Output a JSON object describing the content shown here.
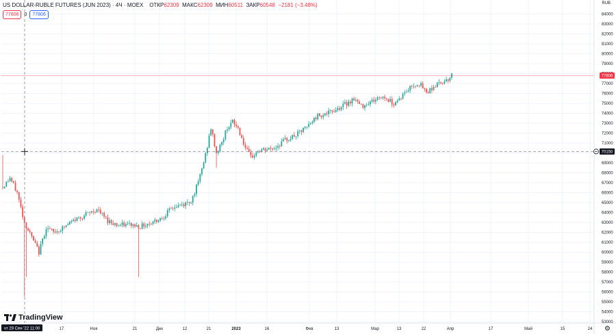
{
  "header": {
    "symbol": "US DOLLAR-RUBLE FUTURES (JUN 2023) · 4Ч · MOEX",
    "open_label": "ОТКР",
    "open_value": "62309",
    "high_label": "МАКС",
    "high_value": "62309",
    "low_label": "МИН",
    "low_value": "60511",
    "close_label": "ЗАКР",
    "close_value": "60548",
    "change": "−2181 (−3.48%)"
  },
  "badges": {
    "left": "77806",
    "zero": "0",
    "right": "77806"
  },
  "currency": "RUB",
  "logo_text": "TradingView",
  "settings_icon": "gear-icon",
  "colors": {
    "up": "#26a69a",
    "down": "#ef5350",
    "last_price": "#f23645",
    "crosshair_label": "#131722"
  },
  "chart_data": {
    "type": "candlestick",
    "title": "US DOLLAR-RUBLE FUTURES (JUN 2023) · 4Ч · MOEX",
    "y_range": [
      53000,
      85000
    ],
    "y_ticks": [
      "84000",
      "83000",
      "82000",
      "81000",
      "80000",
      "79000",
      "78000",
      "77000",
      "76000",
      "75000",
      "74000",
      "73000",
      "72000",
      "71000",
      "70000",
      "69000",
      "68000",
      "67000",
      "66000",
      "65000",
      "64000",
      "63000",
      "62000",
      "61000",
      "60000",
      "59000",
      "58000",
      "57000",
      "56000",
      "55000",
      "54000",
      "53000"
    ],
    "last_price": 77806,
    "crosshair_price": "70150",
    "crosshair_time": "чт 29 Сен '22  11:00",
    "x_ticks": [
      "17",
      "Ноя",
      "21",
      "Дек",
      "12",
      "21",
      "2023",
      "16",
      "Фев",
      "13",
      "Мар",
      "13",
      "22",
      "Апр",
      "17",
      "Май",
      "15",
      "24"
    ],
    "x_tick_bold": "2023",
    "trend": [
      [
        0,
        66500
      ],
      [
        4,
        67500
      ],
      [
        8,
        66000
      ],
      [
        12,
        63000
      ],
      [
        16,
        61500
      ],
      [
        20,
        60000
      ],
      [
        24,
        62500
      ],
      [
        28,
        62000
      ],
      [
        32,
        62300
      ],
      [
        36,
        62800
      ],
      [
        40,
        63300
      ],
      [
        46,
        63800
      ],
      [
        52,
        64300
      ],
      [
        58,
        63200
      ],
      [
        64,
        62700
      ],
      [
        70,
        62800
      ],
      [
        76,
        62600
      ],
      [
        82,
        63000
      ],
      [
        88,
        63500
      ],
      [
        94,
        64500
      ],
      [
        100,
        64800
      ],
      [
        104,
        65200
      ],
      [
        108,
        67000
      ],
      [
        112,
        69800
      ],
      [
        115,
        72500
      ],
      [
        118,
        70000
      ],
      [
        121,
        71000
      ],
      [
        124,
        72600
      ],
      [
        127,
        73100
      ],
      [
        130,
        72500
      ],
      [
        134,
        70500
      ],
      [
        137,
        69500
      ],
      [
        141,
        70200
      ],
      [
        145,
        70300
      ],
      [
        150,
        70500
      ],
      [
        156,
        71300
      ],
      [
        162,
        71800
      ],
      [
        168,
        72600
      ],
      [
        174,
        73800
      ],
      [
        180,
        74000
      ],
      [
        186,
        74600
      ],
      [
        190,
        75000
      ],
      [
        194,
        75500
      ],
      [
        198,
        74700
      ],
      [
        202,
        75100
      ],
      [
        206,
        75400
      ],
      [
        210,
        75700
      ],
      [
        216,
        75000
      ],
      [
        222,
        76000
      ],
      [
        226,
        76800
      ],
      [
        230,
        77000
      ],
      [
        234,
        76100
      ],
      [
        238,
        76700
      ],
      [
        242,
        77100
      ],
      [
        246,
        77500
      ],
      [
        248,
        77806
      ]
    ],
    "volatility": 450,
    "spike_indices": [
      12,
      13,
      75,
      118
    ],
    "spike_lows": [
      55500,
      57500,
      57500,
      68500
    ],
    "x_domain": [
      0,
      250
    ]
  }
}
